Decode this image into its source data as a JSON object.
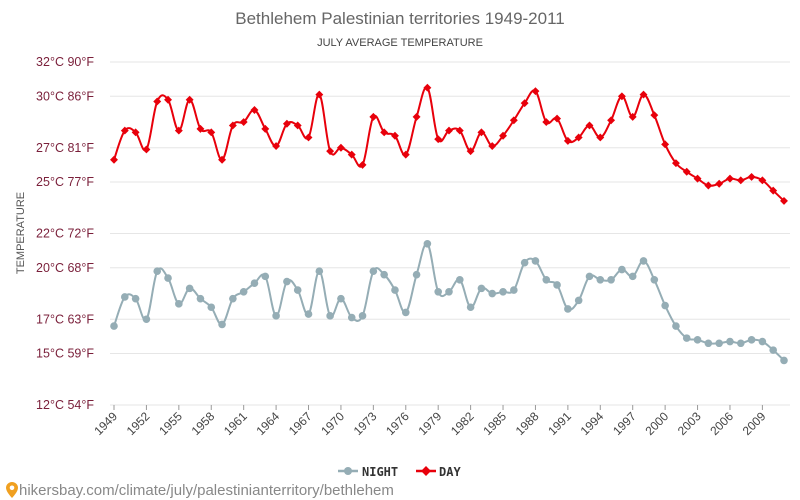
{
  "chart_data": {
    "type": "line",
    "title": "Bethlehem Palestinian territories 1949-2011",
    "subtitle": "JULY AVERAGE TEMPERATURE",
    "ylabel": "TEMPERATURE",
    "ylim": [
      12,
      32
    ],
    "y_ticks": [
      {
        "value": 12,
        "label": "12°C 54°F"
      },
      {
        "value": 15,
        "label": "15°C 59°F"
      },
      {
        "value": 17,
        "label": "17°C 63°F"
      },
      {
        "value": 20,
        "label": "20°C 68°F"
      },
      {
        "value": 22,
        "label": "22°C 72°F"
      },
      {
        "value": 25,
        "label": "25°C 77°F"
      },
      {
        "value": 27,
        "label": "27°C 81°F"
      },
      {
        "value": 30,
        "label": "30°C 86°F"
      },
      {
        "value": 32,
        "label": "32°C 90°F"
      }
    ],
    "x_ticks": [
      "1949",
      "1952",
      "1955",
      "1958",
      "1961",
      "1964",
      "1967",
      "1970",
      "1973",
      "1976",
      "1979",
      "1982",
      "1985",
      "1988",
      "1991",
      "1994",
      "1997",
      "2000",
      "2003",
      "2006",
      "2009"
    ],
    "x": [
      1949,
      1950,
      1951,
      1952,
      1953,
      1954,
      1955,
      1956,
      1957,
      1958,
      1959,
      1960,
      1961,
      1962,
      1963,
      1964,
      1965,
      1966,
      1967,
      1968,
      1969,
      1970,
      1971,
      1972,
      1973,
      1974,
      1975,
      1976,
      1977,
      1978,
      1979,
      1980,
      1981,
      1982,
      1983,
      1984,
      1985,
      1986,
      1987,
      1988,
      1989,
      1990,
      1991,
      1992,
      1993,
      1994,
      1995,
      1996,
      1997,
      1998,
      1999,
      2000,
      2001,
      2002,
      2003,
      2004,
      2005,
      2006,
      2007,
      2008,
      2009,
      2010,
      2011
    ],
    "series": [
      {
        "name": "NIGHT",
        "color": "#95adb5",
        "marker": "circle",
        "values": [
          16.6,
          18.3,
          18.2,
          17.0,
          19.8,
          19.4,
          17.9,
          18.8,
          18.2,
          17.7,
          16.7,
          18.2,
          18.6,
          19.1,
          19.5,
          17.2,
          19.2,
          18.7,
          17.3,
          19.8,
          17.2,
          18.2,
          17.1,
          17.2,
          19.8,
          19.6,
          18.7,
          17.4,
          19.6,
          21.4,
          18.6,
          18.6,
          19.3,
          17.7,
          18.8,
          18.5,
          18.6,
          18.7,
          20.3,
          20.4,
          19.3,
          19.0,
          17.6,
          18.1,
          19.5,
          19.3,
          19.3,
          19.9,
          19.5,
          20.4,
          19.3,
          17.8,
          16.6,
          15.9,
          15.8,
          15.6,
          15.6,
          15.7,
          15.6,
          15.8,
          15.7,
          15.2,
          14.6
        ]
      },
      {
        "name": "DAY",
        "color": "#e8000b",
        "marker": "diamond",
        "values": [
          26.3,
          28.0,
          27.9,
          26.9,
          29.7,
          29.8,
          28.0,
          29.8,
          28.1,
          27.9,
          26.3,
          28.3,
          28.5,
          29.2,
          28.1,
          27.1,
          28.4,
          28.3,
          27.6,
          30.1,
          26.8,
          27.0,
          26.6,
          26.0,
          28.8,
          27.9,
          27.7,
          26.6,
          28.8,
          30.5,
          27.5,
          28.0,
          28.0,
          26.8,
          27.9,
          27.1,
          27.7,
          28.6,
          29.6,
          30.3,
          28.5,
          28.7,
          27.4,
          27.6,
          28.3,
          27.6,
          28.6,
          30.0,
          28.8,
          30.1,
          28.9,
          27.2,
          26.1,
          25.6,
          25.2,
          24.8,
          24.9,
          25.2,
          25.1,
          25.3,
          25.1,
          24.5,
          23.9
        ]
      }
    ],
    "grid": true,
    "legend_position": "bottom-center"
  },
  "watermark": "hikersbay.com/climate/july/palestinianterritory/bethlehem",
  "watermark_pin_color": "#f0a020"
}
